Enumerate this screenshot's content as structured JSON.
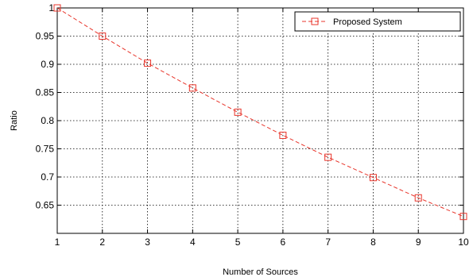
{
  "chart_data": {
    "type": "line",
    "title": "",
    "xlabel": "Number of Sources",
    "ylabel": "Ratio",
    "xlim": [
      1,
      10
    ],
    "ylim": [
      0.6,
      1.0
    ],
    "xticks": [
      1,
      2,
      3,
      4,
      5,
      6,
      7,
      8,
      9,
      10
    ],
    "yticks": [
      0.65,
      0.7,
      0.75,
      0.8,
      0.85,
      0.9,
      0.95,
      1
    ],
    "ytick_labels": [
      "0.65",
      "0.7",
      "0.75",
      "0.8",
      "0.85",
      "0.9",
      "0.95",
      "1"
    ],
    "grid": true,
    "legend_position": "top-right",
    "series": [
      {
        "name": "Proposed System",
        "color": "#e8352b",
        "line_style": "dashed",
        "marker": "square",
        "x": [
          1,
          2,
          3,
          4,
          5,
          6,
          7,
          8,
          9,
          10
        ],
        "y": [
          1.0,
          0.95,
          0.902,
          0.858,
          0.815,
          0.774,
          0.735,
          0.699,
          0.663,
          0.63
        ]
      }
    ]
  }
}
